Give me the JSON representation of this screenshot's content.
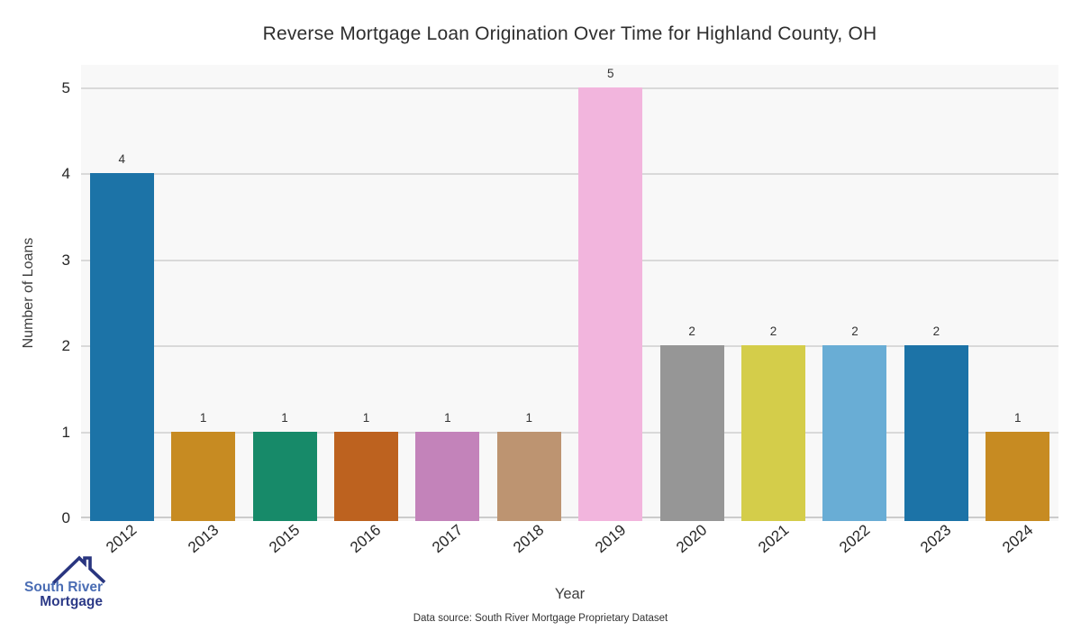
{
  "chart_data": {
    "type": "bar",
    "title": "Reverse Mortgage Loan Origination Over Time for Highland County, OH",
    "xlabel": "Year",
    "ylabel": "Number of Loans",
    "categories": [
      "2012",
      "2013",
      "2015",
      "2016",
      "2017",
      "2018",
      "2019",
      "2020",
      "2021",
      "2022",
      "2023",
      "2024"
    ],
    "values": [
      4,
      1,
      1,
      1,
      1,
      1,
      5,
      2,
      2,
      2,
      2,
      1
    ],
    "bar_colors": [
      "#1c73a7",
      "#c78b22",
      "#178a69",
      "#bd621f",
      "#c383ba",
      "#bd9471",
      "#f2b5dd",
      "#969696",
      "#d4cd4a",
      "#69add5",
      "#1c73a7",
      "#c78b22"
    ],
    "ylim": [
      0,
      5
    ],
    "yticks": [
      0,
      1,
      2,
      3,
      4,
      5
    ],
    "grid": true,
    "legend_position": "none",
    "plot_background": "#f8f8f8",
    "grid_color": "#d9d9d9",
    "baseline_color": "#cccccc",
    "value_label_color": "#333333"
  },
  "footer": {
    "data_source": "Data source: South River Mortgage Proprietary Dataset"
  },
  "logo": {
    "line1": "South River",
    "line2": "Mortgage",
    "line1_color": "#4a6db4",
    "line2_color": "#2c3a87",
    "roof_color": "#29357f"
  }
}
